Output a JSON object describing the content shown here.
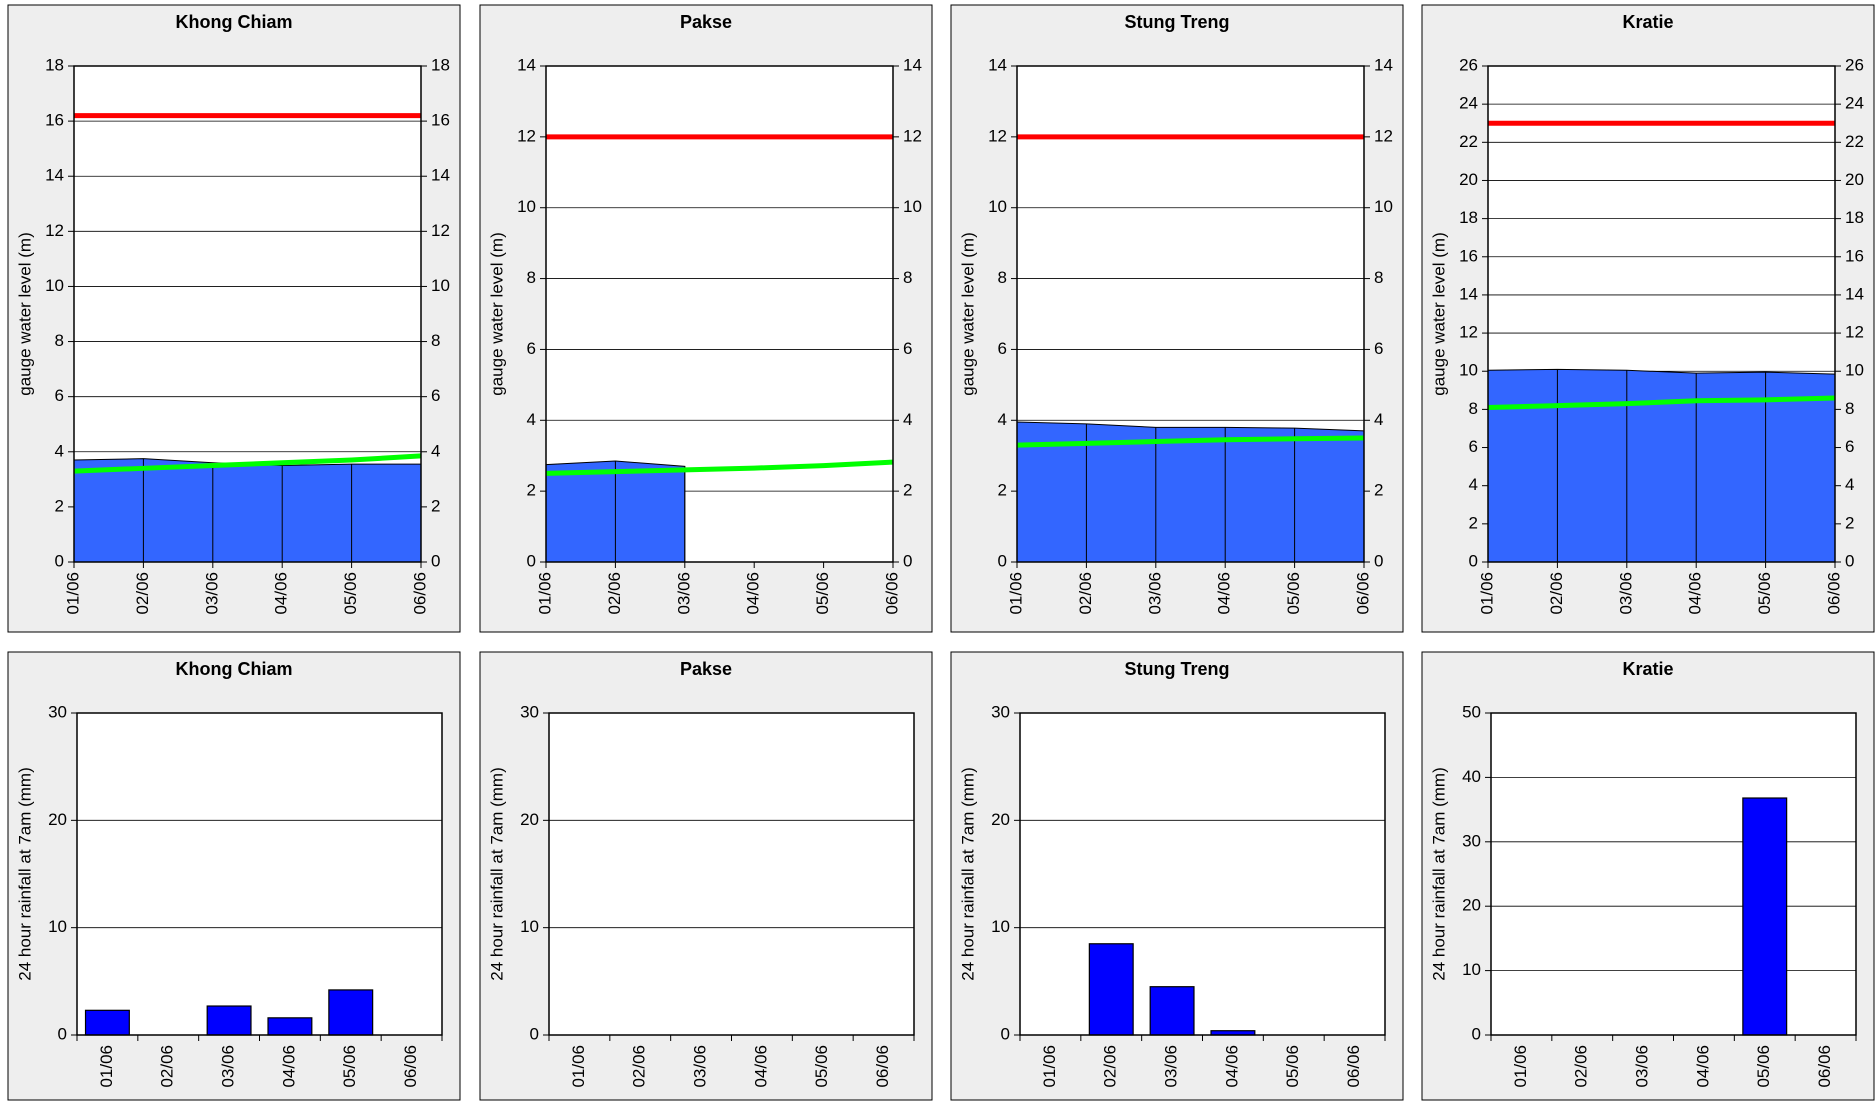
{
  "chart_data": [
    {
      "type": "area",
      "title": "Khong Chiam",
      "y_label": "gauge water level (m)",
      "categories": [
        "01/06",
        "02/06",
        "03/06",
        "04/06",
        "05/06",
        "06/06"
      ],
      "series": [
        {
          "type": "area",
          "color": "#3366ff",
          "values": [
            3.7,
            3.75,
            3.6,
            3.5,
            3.55,
            3.55
          ]
        },
        {
          "type": "line",
          "color": "#ff0000",
          "values": [
            16.2,
            16.2,
            16.2,
            16.2,
            16.2,
            16.2
          ]
        },
        {
          "type": "line",
          "color": "#00ff00",
          "values": [
            3.3,
            3.4,
            3.5,
            3.6,
            3.7,
            3.85
          ]
        }
      ],
      "ylim": [
        0,
        18
      ],
      "yticks": [
        0,
        2,
        4,
        6,
        8,
        10,
        12,
        14,
        16,
        18
      ],
      "y2lim": [
        0,
        18
      ],
      "y2ticks": [
        0,
        2,
        4,
        6,
        8,
        10,
        12,
        14,
        16,
        18
      ],
      "grid": true
    },
    {
      "type": "area",
      "title": "Pakse",
      "y_label": "gauge water level (m)",
      "categories": [
        "01/06",
        "02/06",
        "03/06",
        "04/06",
        "05/06",
        "06/06"
      ],
      "series": [
        {
          "type": "area",
          "color": "#3366ff",
          "values": [
            2.75,
            2.85,
            2.7,
            null,
            null,
            null
          ]
        },
        {
          "type": "line",
          "color": "#ff0000",
          "values": [
            12,
            12,
            12,
            12,
            12,
            12
          ]
        },
        {
          "type": "line",
          "color": "#00ff00",
          "values": [
            2.5,
            2.55,
            2.6,
            2.65,
            2.72,
            2.82
          ]
        }
      ],
      "ylim": [
        0,
        14
      ],
      "yticks": [
        0,
        2,
        4,
        6,
        8,
        10,
        12,
        14
      ],
      "y2lim": [
        0,
        14
      ],
      "y2ticks": [
        0,
        2,
        4,
        6,
        8,
        10,
        12,
        14
      ],
      "grid": true
    },
    {
      "type": "area",
      "title": "Stung Treng",
      "y_label": "gauge water level (m)",
      "categories": [
        "01/06",
        "02/06",
        "03/06",
        "04/06",
        "05/06",
        "06/06"
      ],
      "series": [
        {
          "type": "area",
          "color": "#3366ff",
          "values": [
            3.95,
            3.9,
            3.8,
            3.8,
            3.78,
            3.7
          ]
        },
        {
          "type": "line",
          "color": "#ff0000",
          "values": [
            12,
            12,
            12,
            12,
            12,
            12
          ]
        },
        {
          "type": "line",
          "color": "#00ff00",
          "values": [
            3.3,
            3.35,
            3.4,
            3.45,
            3.48,
            3.5
          ]
        }
      ],
      "ylim": [
        0,
        14
      ],
      "yticks": [
        0,
        2,
        4,
        6,
        8,
        10,
        12,
        14
      ],
      "y2lim": [
        0,
        14
      ],
      "y2ticks": [
        0,
        2,
        4,
        6,
        8,
        10,
        12,
        14
      ],
      "grid": true
    },
    {
      "type": "area",
      "title": "Kratie",
      "y_label": "gauge water level (m)",
      "categories": [
        "01/06",
        "02/06",
        "03/06",
        "04/06",
        "05/06",
        "06/06"
      ],
      "series": [
        {
          "type": "area",
          "color": "#3366ff",
          "values": [
            10.05,
            10.1,
            10.05,
            9.9,
            9.95,
            9.85
          ]
        },
        {
          "type": "line",
          "color": "#ff0000",
          "values": [
            23,
            23,
            23,
            23,
            23,
            23
          ]
        },
        {
          "type": "line",
          "color": "#00ff00",
          "values": [
            8.1,
            8.2,
            8.3,
            8.45,
            8.5,
            8.6
          ]
        }
      ],
      "ylim": [
        0,
        26
      ],
      "yticks": [
        0,
        2,
        4,
        6,
        8,
        10,
        12,
        14,
        16,
        18,
        20,
        22,
        24,
        26
      ],
      "y2lim": [
        0,
        26
      ],
      "y2ticks": [
        0,
        2,
        4,
        6,
        8,
        10,
        12,
        14,
        16,
        18,
        20,
        22,
        24,
        26
      ],
      "grid": true
    },
    {
      "type": "bar",
      "title": "Khong Chiam",
      "y_label": "24 hour rainfall at 7am (mm)",
      "categories": [
        "01/06",
        "02/06",
        "03/06",
        "04/06",
        "05/06",
        "06/06"
      ],
      "values": [
        2.3,
        0,
        2.7,
        1.6,
        4.2,
        0
      ],
      "color": "#0000ff",
      "ylim": [
        0,
        30
      ],
      "yticks": [
        0,
        10,
        20,
        30
      ],
      "grid": true
    },
    {
      "type": "bar",
      "title": "Pakse",
      "y_label": "24 hour rainfall at 7am (mm)",
      "categories": [
        "01/06",
        "02/06",
        "03/06",
        "04/06",
        "05/06",
        "06/06"
      ],
      "values": [
        0,
        0,
        0,
        0,
        0,
        0
      ],
      "color": "#0000ff",
      "ylim": [
        0,
        30
      ],
      "yticks": [
        0,
        10,
        20,
        30
      ],
      "grid": true
    },
    {
      "type": "bar",
      "title": "Stung Treng",
      "y_label": "24 hour rainfall at 7am (mm)",
      "categories": [
        "01/06",
        "02/06",
        "03/06",
        "04/06",
        "05/06",
        "06/06"
      ],
      "values": [
        0,
        8.5,
        4.5,
        0.4,
        0,
        0
      ],
      "color": "#0000ff",
      "ylim": [
        0,
        30
      ],
      "yticks": [
        0,
        10,
        20,
        30
      ],
      "grid": true
    },
    {
      "type": "bar",
      "title": "Kratie",
      "y_label": "24 hour rainfall at 7am (mm)",
      "categories": [
        "01/06",
        "02/06",
        "03/06",
        "04/06",
        "05/06",
        "06/06"
      ],
      "values": [
        0,
        0,
        0,
        0,
        36.8,
        0
      ],
      "color": "#0000ff",
      "ylim": [
        0,
        50
      ],
      "yticks": [
        0,
        10,
        20,
        30,
        40,
        50
      ],
      "grid": true
    }
  ]
}
